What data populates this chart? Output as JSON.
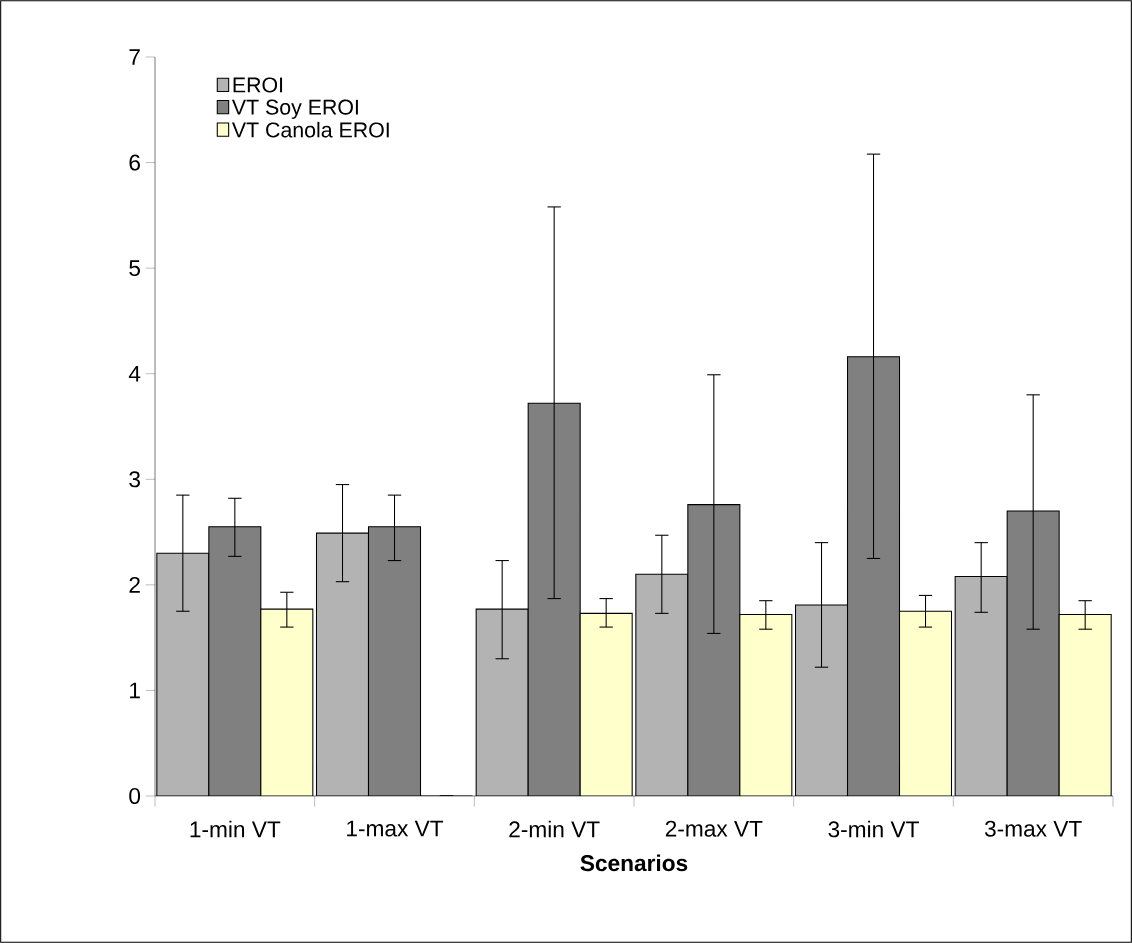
{
  "chart_data": {
    "type": "bar",
    "xlabel": "Scenarios",
    "categories": [
      "1-min VT",
      "1-max VT",
      "2-min VT",
      "2-max VT",
      "3-min VT",
      "3-max VT"
    ],
    "series": [
      {
        "name": "EROI",
        "color": "#b3b3b3",
        "values": [
          2.3,
          2.49,
          1.77,
          2.1,
          1.81,
          2.08
        ],
        "errors": [
          [
            1.75,
            2.85
          ],
          [
            2.03,
            2.95
          ],
          [
            1.3,
            2.23
          ],
          [
            1.73,
            2.47
          ],
          [
            1.22,
            2.4
          ],
          [
            1.74,
            2.4
          ]
        ]
      },
      {
        "name": "VT Soy EROI",
        "color": "#808080",
        "values": [
          2.55,
          2.55,
          3.72,
          2.76,
          4.16,
          2.7
        ],
        "errors": [
          [
            2.27,
            2.82
          ],
          [
            2.23,
            2.85
          ],
          [
            1.87,
            5.58
          ],
          [
            1.54,
            3.99
          ],
          [
            2.25,
            6.08
          ],
          [
            1.58,
            3.8
          ]
        ]
      },
      {
        "name": "VT Canola EROI",
        "color": "#ffffcc",
        "values": [
          1.77,
          0,
          1.73,
          1.72,
          1.75,
          1.72
        ],
        "errors": [
          [
            1.6,
            1.93
          ],
          null,
          [
            1.6,
            1.87
          ],
          [
            1.58,
            1.85
          ],
          [
            1.6,
            1.9
          ],
          [
            1.58,
            1.85
          ]
        ]
      }
    ],
    "ylim": [
      0,
      7
    ],
    "yticks": [
      0,
      1,
      2,
      3,
      4,
      5,
      6,
      7
    ],
    "grid": false,
    "legend": "top left"
  }
}
